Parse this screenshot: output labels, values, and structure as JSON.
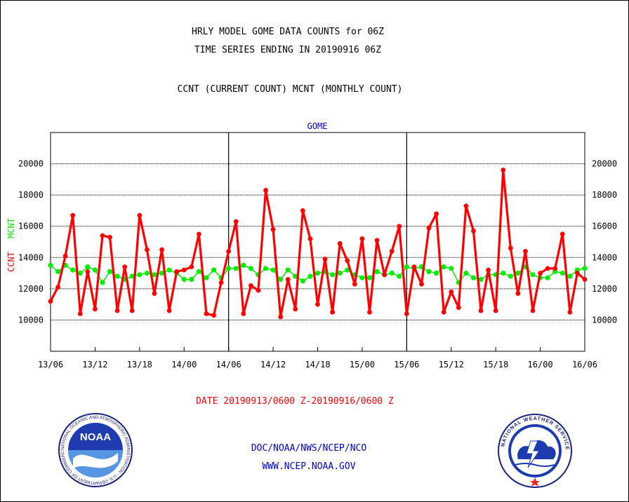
{
  "header": {
    "line1": "HRLY MODEL GOME DATA COUNTS for 06Z",
    "line2": "TIME SERIES ENDING IN 20190916 06Z",
    "line3": "CCNT (CURRENT COUNT) MCNT (MONTHLY COUNT)"
  },
  "footer": {
    "date_label": "DATE 20190913/0600 Z-20190916/0600 Z",
    "org": "DOC/NOAA/NWS/NCEP/NCO",
    "url": "WWW.NCEP.NOAA.GOV"
  },
  "logos": {
    "noaa": {
      "label": "NOAA",
      "ring_text": "NATIONAL OCEANIC AND ATMOSPHERIC ADMINISTRATION · U.S. DEPARTMENT OF COMMERCE"
    },
    "nws": {
      "ring_text": "NATIONAL WEATHER SERVICE"
    }
  },
  "colors": {
    "ccnt": "#ff0000",
    "mcnt": "#00ee00",
    "accent": "#0000cc",
    "grid": "#000000"
  },
  "chart_data": {
    "type": "line",
    "title": "GOME",
    "ylabel_ccnt": "CCNT",
    "ylabel_mcnt": "MCNT",
    "ylim": [
      8000,
      22000
    ],
    "yticks": [
      10000,
      12000,
      14000,
      16000,
      18000,
      20000
    ],
    "ytick_labels": [
      "10000",
      "12000",
      "14000",
      "16000",
      "18000",
      "20000"
    ],
    "xlim": [
      0,
      72
    ],
    "xticks": [
      0,
      6,
      12,
      18,
      24,
      30,
      36,
      42,
      48,
      54,
      60,
      66,
      72
    ],
    "xtick_labels": [
      "13/06",
      "13/12",
      "13/18",
      "14/00",
      "14/06",
      "14/12",
      "14/18",
      "15/00",
      "15/06",
      "15/12",
      "15/18",
      "16/00",
      "16/06"
    ],
    "major_vlines": [
      24,
      48
    ],
    "grid": true,
    "series": [
      {
        "name": "CCNT",
        "x": [
          0,
          1,
          2,
          3,
          4,
          5,
          6,
          7,
          8,
          9,
          10,
          11,
          12,
          13,
          14,
          15,
          16,
          17,
          18,
          19,
          20,
          21,
          22,
          23,
          24,
          25,
          26,
          27,
          28,
          29,
          30,
          31,
          32,
          33,
          34,
          35,
          36,
          37,
          38,
          39,
          40,
          41,
          42,
          43,
          44,
          45,
          46,
          47,
          48,
          49,
          50,
          51,
          52,
          53,
          54,
          55,
          56,
          57,
          58,
          59,
          60,
          61,
          62,
          63,
          64,
          65,
          66,
          67,
          68,
          69,
          70,
          71,
          72
        ],
        "values": [
          11200,
          12100,
          14100,
          16700,
          10400,
          13100,
          10700,
          15400,
          15300,
          10600,
          13400,
          10600,
          16700,
          14500,
          11700,
          14500,
          10600,
          13100,
          13200,
          13400,
          15500,
          10400,
          10300,
          12400,
          14400,
          16300,
          10400,
          12200,
          11900,
          18300,
          15800,
          10200,
          12600,
          10700,
          17000,
          15200,
          11000,
          13900,
          10500,
          14900,
          13800,
          12300,
          15200,
          10500,
          15100,
          12900,
          14400,
          16000,
          10400,
          13400,
          12300,
          15900,
          16800,
          10500,
          11800,
          10800,
          17300,
          15700,
          10600,
          13200,
          10600,
          19600,
          14600,
          11700,
          14400,
          10600,
          13000,
          13300,
          13300,
          15500,
          10500,
          13000,
          12600
        ]
      },
      {
        "name": "MCNT",
        "x": [
          0,
          1,
          2,
          3,
          4,
          5,
          6,
          7,
          8,
          9,
          10,
          11,
          12,
          13,
          14,
          15,
          16,
          17,
          18,
          19,
          20,
          21,
          22,
          23,
          24,
          25,
          26,
          27,
          28,
          29,
          30,
          31,
          32,
          33,
          34,
          35,
          36,
          37,
          38,
          39,
          40,
          41,
          42,
          43,
          44,
          45,
          46,
          47,
          48,
          49,
          50,
          51,
          52,
          53,
          54,
          55,
          56,
          57,
          58,
          59,
          60,
          61,
          62,
          63,
          64,
          65,
          66,
          67,
          68,
          69,
          70,
          71,
          72
        ],
        "values": [
          13500,
          13100,
          13500,
          13200,
          13000,
          13400,
          13200,
          12400,
          13100,
          12800,
          12600,
          12800,
          12900,
          13000,
          12900,
          13000,
          13200,
          13000,
          12600,
          12600,
          13100,
          12700,
          13200,
          12700,
          13300,
          13300,
          13500,
          13300,
          12900,
          13300,
          13200,
          12600,
          13200,
          12800,
          12500,
          12800,
          13000,
          13100,
          12900,
          13000,
          13200,
          12900,
          12700,
          12700,
          13100,
          12900,
          13000,
          12800,
          13400,
          13300,
          13400,
          13100,
          13000,
          13400,
          13300,
          12400,
          13000,
          12700,
          12600,
          12900,
          12900,
          13000,
          12800,
          13000,
          13400,
          12900,
          12700,
          12700,
          13100,
          13000,
          12800,
          13200,
          13300
        ]
      }
    ]
  }
}
